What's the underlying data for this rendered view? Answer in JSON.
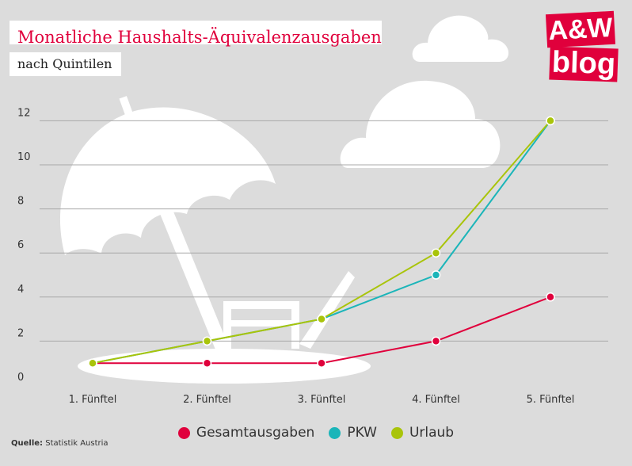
{
  "header": {
    "title": "Monatliche Haushalts-Äquivalenzausgaben",
    "subtitle": "nach Quintilen"
  },
  "logo": {
    "top": "A&W",
    "bottom": "blog"
  },
  "source": {
    "label": "Quelle:",
    "text": "Statistik Austria"
  },
  "chart_data": {
    "type": "line",
    "categories": [
      "1. Fünftel",
      "2. Fünftel",
      "3. Fünftel",
      "4. Fünftel",
      "5. Fünftel"
    ],
    "series": [
      {
        "name": "Gesamtausgaben",
        "color": "#e0003c",
        "values": [
          1,
          1,
          1,
          2,
          4
        ]
      },
      {
        "name": "PKW",
        "color": "#1bb5b9",
        "values": [
          1,
          2,
          3,
          5,
          12
        ]
      },
      {
        "name": "Urlaub",
        "color": "#a9c40a",
        "values": [
          1,
          2,
          3,
          6,
          12
        ]
      }
    ],
    "yticks": [
      0,
      2,
      4,
      6,
      8,
      10,
      12
    ],
    "ylim": [
      0,
      12.5
    ],
    "grid": true,
    "legend_position": "bottom-center"
  }
}
